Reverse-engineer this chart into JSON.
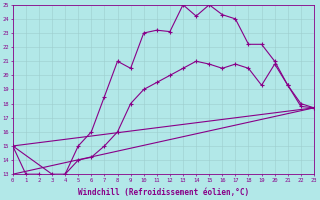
{
  "xlabel": "Windchill (Refroidissement éolien,°C)",
  "background_color": "#b2e8e8",
  "line_color": "#880088",
  "xmin": 0,
  "xmax": 23,
  "ymin": 13,
  "ymax": 25,
  "line1_x": [
    0,
    1,
    2,
    3,
    4,
    5,
    6,
    7,
    8,
    9,
    10,
    11,
    12,
    13,
    14,
    15,
    16,
    17,
    18,
    19,
    20,
    21,
    22,
    23
  ],
  "line1_y": [
    15.0,
    13.0,
    13.0,
    12.8,
    13.0,
    15.0,
    16.0,
    18.5,
    21.0,
    20.5,
    23.0,
    23.2,
    23.1,
    25.0,
    24.2,
    25.0,
    24.3,
    24.0,
    22.2,
    22.2,
    21.0,
    19.3,
    17.8,
    17.7
  ],
  "line2_x": [
    0,
    3,
    4,
    5,
    6,
    7,
    8,
    9,
    10,
    11,
    12,
    13,
    14,
    15,
    16,
    17,
    18,
    19,
    20,
    21,
    22,
    23
  ],
  "line2_y": [
    15.0,
    13.0,
    13.0,
    14.0,
    14.2,
    15.0,
    16.0,
    18.0,
    19.0,
    19.5,
    20.0,
    20.5,
    21.0,
    20.8,
    20.5,
    20.8,
    20.5,
    19.3,
    20.8,
    19.3,
    18.0,
    17.7
  ],
  "line3_x": [
    0,
    23
  ],
  "line3_y": [
    13.0,
    17.7
  ],
  "line4_x": [
    0,
    23
  ],
  "line4_y": [
    15.0,
    17.7
  ]
}
